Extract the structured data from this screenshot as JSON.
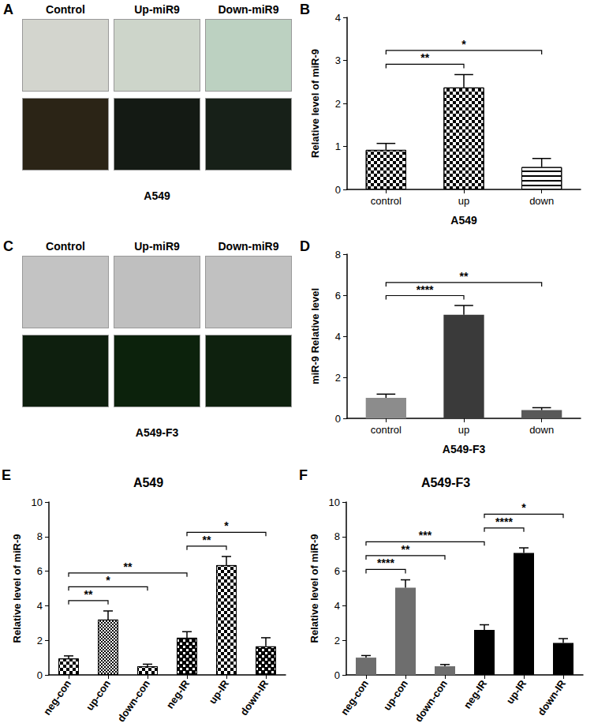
{
  "images": [
    {
      "panel": "A",
      "columns": [
        "Control",
        "Up-miR9",
        "Down-miR9"
      ],
      "caption": "A549"
    },
    {
      "panel": "C",
      "columns": [
        "Control",
        "Up-miR9",
        "Down-miR9"
      ],
      "caption": "A549-F3"
    }
  ],
  "chart_data": [
    {
      "panel": "B",
      "type": "bar",
      "x_label": "A549",
      "y_label": "Relative level of miR-9",
      "categories": [
        "control",
        "up",
        "down"
      ],
      "values": [
        0.92,
        2.37,
        0.52
      ],
      "errors": [
        0.15,
        0.3,
        0.2
      ],
      "colors": [
        "#000000",
        "#000000",
        "#000000"
      ],
      "ylim": [
        0,
        4
      ],
      "yticks": [
        0,
        1,
        2,
        3,
        4
      ],
      "grid": false,
      "significance": [
        {
          "from": "control",
          "to": "up",
          "label": "**"
        },
        {
          "from": "control",
          "to": "down",
          "label": "*"
        }
      ]
    },
    {
      "panel": "D",
      "type": "bar",
      "x_label": "A549-F3",
      "y_label": "miR-9 Relative level",
      "categories": [
        "control",
        "up",
        "down"
      ],
      "values": [
        1.0,
        5.05,
        0.4
      ],
      "errors": [
        0.18,
        0.45,
        0.12
      ],
      "colors": [
        "#8c8c8c",
        "#3a3a3a",
        "#595959"
      ],
      "ylim": [
        0,
        8
      ],
      "yticks": [
        0,
        2,
        4,
        6,
        8
      ],
      "grid": false,
      "significance": [
        {
          "from": "control",
          "to": "up",
          "label": "****"
        },
        {
          "from": "control",
          "to": "down",
          "label": "**"
        }
      ]
    },
    {
      "panel": "E",
      "type": "bar",
      "title": "A549",
      "y_label": "Relative level of miR-9",
      "categories": [
        "neg-con",
        "up-con",
        "down-con",
        "neg-IR",
        "up-IR",
        "down-IR"
      ],
      "values": [
        0.95,
        3.2,
        0.5,
        2.15,
        6.35,
        1.65
      ],
      "errors": [
        0.15,
        0.5,
        0.12,
        0.35,
        0.5,
        0.5
      ],
      "colors": [
        "#000000",
        "#000000",
        "#000000",
        "#000000",
        "#000000",
        "#000000"
      ],
      "ylim": [
        0,
        10
      ],
      "yticks": [
        0,
        2,
        4,
        6,
        8,
        10
      ],
      "grid": false,
      "significance": [
        {
          "from": "neg-con",
          "to": "up-con",
          "label": "**"
        },
        {
          "from": "neg-con",
          "to": "down-con",
          "label": "*"
        },
        {
          "from": "neg-con",
          "to": "neg-IR",
          "label": "**"
        },
        {
          "from": "neg-IR",
          "to": "up-IR",
          "label": "**"
        },
        {
          "from": "neg-IR",
          "to": "down-IR",
          "label": "*"
        }
      ]
    },
    {
      "panel": "F",
      "type": "bar",
      "title": "A549-F3",
      "y_label": "Relative level of miR-9",
      "categories": [
        "neg-con",
        "up-con",
        "down-con",
        "neg-IR",
        "up-IR",
        "down-IR"
      ],
      "values": [
        1.0,
        5.05,
        0.5,
        2.6,
        7.05,
        1.85
      ],
      "errors": [
        0.12,
        0.45,
        0.1,
        0.3,
        0.3,
        0.25
      ],
      "colors": [
        "#6e6e6e",
        "#6e6e6e",
        "#6e6e6e",
        "#000000",
        "#000000",
        "#000000"
      ],
      "ylim": [
        0,
        10
      ],
      "yticks": [
        0,
        2,
        4,
        6,
        8,
        10
      ],
      "grid": false,
      "significance": [
        {
          "from": "neg-con",
          "to": "up-con",
          "label": "****"
        },
        {
          "from": "neg-con",
          "to": "down-con",
          "label": "**"
        },
        {
          "from": "neg-con",
          "to": "neg-IR",
          "label": "***"
        },
        {
          "from": "neg-IR",
          "to": "up-IR",
          "label": "****"
        },
        {
          "from": "neg-IR",
          "to": "down-IR",
          "label": "*"
        }
      ]
    }
  ]
}
